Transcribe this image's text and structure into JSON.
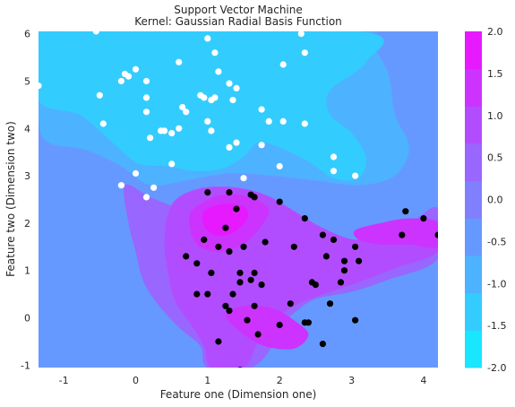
{
  "chart_data": {
    "type": "scatter",
    "title": "Support Vector Machine",
    "subtitle": "Kernel: Gaussian Radial Basis Function",
    "xlabel": "Feature one (Dimension one)",
    "ylabel": "Feature two (Dimension two)",
    "xlim": [
      -1.35,
      4.2
    ],
    "ylim": [
      -1.05,
      6.05
    ],
    "x_ticks": [
      "-1",
      "0",
      "1",
      "2",
      "3",
      "4"
    ],
    "x_tick_values": [
      -1,
      0,
      1,
      2,
      3,
      4
    ],
    "y_ticks": [
      "-1",
      "0",
      "1",
      "2",
      "3",
      "4",
      "5",
      "6"
    ],
    "y_tick_values": [
      -1,
      0,
      1,
      2,
      3,
      4,
      5,
      6
    ],
    "grid": false,
    "colorbar": {
      "colormap": "cool",
      "ticks": [
        "-2.0",
        "-1.5",
        "-1.0",
        "-0.5",
        "0.0",
        "0.5",
        "1.0",
        "1.5",
        "2.0"
      ],
      "tick_values": [
        -2.0,
        -1.5,
        -1.0,
        -0.5,
        0.0,
        0.5,
        1.0,
        1.5,
        2.0
      ],
      "colors": [
        "#19e6ff",
        "#33ccff",
        "#4db2ff",
        "#6699ff",
        "#8080ff",
        "#9966ff",
        "#b24dff",
        "#cc33ff",
        "#e619ff"
      ]
    },
    "contour_regions": [
      {
        "level": -1.25,
        "color": "#4db2ff",
        "outline": [
          [
            -1.35,
            4.2
          ],
          [
            -1.2,
            3.7
          ],
          [
            -0.7,
            3.55
          ],
          [
            -0.2,
            3.2
          ],
          [
            0.2,
            2.8
          ],
          [
            0.7,
            2.9
          ],
          [
            1.3,
            3.05
          ],
          [
            1.9,
            3.0
          ],
          [
            2.5,
            2.9
          ],
          [
            3.1,
            2.8
          ],
          [
            3.6,
            3.0
          ],
          [
            3.8,
            3.6
          ],
          [
            3.6,
            4.3
          ],
          [
            3.5,
            5.2
          ],
          [
            3.2,
            5.9
          ],
          [
            3.0,
            6.05
          ],
          [
            -1.35,
            6.05
          ]
        ]
      },
      {
        "level": -1.75,
        "color": "#33ccff",
        "outline": [
          [
            -1.35,
            4.6
          ],
          [
            -0.8,
            4.3
          ],
          [
            -0.5,
            3.95
          ],
          [
            -0.25,
            3.6
          ],
          [
            0.05,
            3.25
          ],
          [
            0.45,
            3.2
          ],
          [
            0.8,
            3.1
          ],
          [
            1.2,
            3.15
          ],
          [
            1.5,
            3.4
          ],
          [
            1.7,
            3.7
          ],
          [
            2.0,
            3.6
          ],
          [
            2.4,
            3.3
          ],
          [
            2.75,
            2.95
          ],
          [
            3.1,
            2.95
          ],
          [
            3.2,
            3.4
          ],
          [
            3.0,
            3.9
          ],
          [
            2.7,
            4.3
          ],
          [
            2.7,
            4.8
          ],
          [
            3.2,
            5.4
          ],
          [
            3.1,
            6.05
          ],
          [
            -0.9,
            6.05
          ],
          [
            -1.35,
            5.9
          ]
        ]
      },
      {
        "level": 0.25,
        "color": "#9966ff",
        "outline": [
          [
            -0.15,
            2.8
          ],
          [
            0.2,
            2.55
          ],
          [
            0.6,
            2.3
          ],
          [
            0.9,
            2.05
          ],
          [
            1.1,
            1.7
          ],
          [
            1.3,
            1.3
          ],
          [
            1.7,
            1.0
          ],
          [
            2.0,
            0.9
          ],
          [
            2.4,
            1.0
          ],
          [
            2.8,
            1.3
          ],
          [
            3.4,
            1.6
          ],
          [
            3.9,
            2.1
          ],
          [
            4.2,
            2.3
          ],
          [
            4.2,
            1.25
          ],
          [
            3.5,
            0.8
          ],
          [
            3.0,
            0.55
          ],
          [
            2.5,
            0.4
          ],
          [
            2.2,
            0.1
          ],
          [
            2.0,
            -0.2
          ],
          [
            1.9,
            -0.6
          ],
          [
            1.6,
            -1.05
          ],
          [
            1.0,
            -1.05
          ],
          [
            0.9,
            -0.6
          ],
          [
            0.6,
            -0.2
          ],
          [
            0.3,
            0.3
          ],
          [
            0.1,
            0.8
          ],
          [
            0.0,
            1.4
          ],
          [
            -0.1,
            2.0
          ]
        ]
      },
      {
        "level": 0.75,
        "color": "#b24dff",
        "outline": [
          [
            0.6,
            2.55
          ],
          [
            0.95,
            2.75
          ],
          [
            1.4,
            2.75
          ],
          [
            1.8,
            2.6
          ],
          [
            2.1,
            2.35
          ],
          [
            2.6,
            1.9
          ],
          [
            3.1,
            1.65
          ],
          [
            3.6,
            1.95
          ],
          [
            4.2,
            2.05
          ],
          [
            4.2,
            1.4
          ],
          [
            3.6,
            1.05
          ],
          [
            3.1,
            0.75
          ],
          [
            2.7,
            0.55
          ],
          [
            2.2,
            0.25
          ],
          [
            1.9,
            -0.1
          ],
          [
            1.7,
            -0.5
          ],
          [
            1.5,
            -1.05
          ],
          [
            1.05,
            -1.05
          ],
          [
            0.95,
            -0.6
          ],
          [
            0.75,
            -0.1
          ],
          [
            0.55,
            0.35
          ],
          [
            0.45,
            0.95
          ],
          [
            0.4,
            1.6
          ],
          [
            0.45,
            2.2
          ]
        ]
      },
      {
        "level": 1.25,
        "color": "#cc33ff",
        "outline": [
          [
            0.8,
            2.3
          ],
          [
            1.2,
            2.6
          ],
          [
            1.6,
            2.55
          ],
          [
            1.85,
            2.3
          ],
          [
            1.75,
            1.95
          ],
          [
            1.5,
            1.55
          ],
          [
            1.15,
            1.4
          ],
          [
            0.85,
            1.55
          ],
          [
            0.75,
            1.95
          ]
        ]
      },
      {
        "level": 1.75,
        "color": "#e619ff",
        "outline": [
          [
            0.95,
            2.25
          ],
          [
            1.2,
            2.4
          ],
          [
            1.5,
            2.35
          ],
          [
            1.55,
            2.1
          ],
          [
            1.35,
            1.8
          ],
          [
            1.1,
            1.75
          ],
          [
            0.95,
            1.95
          ]
        ]
      },
      {
        "level": 1.25,
        "color": "#cc33ff",
        "outline": [
          [
            3.05,
            1.85
          ],
          [
            3.4,
            2.0
          ],
          [
            3.8,
            2.1
          ],
          [
            4.2,
            2.0
          ],
          [
            4.2,
            1.5
          ],
          [
            3.8,
            1.55
          ],
          [
            3.4,
            1.55
          ],
          [
            3.1,
            1.65
          ]
        ]
      },
      {
        "level": 1.25,
        "color": "#cc33ff",
        "outline": [
          [
            1.25,
            0.05
          ],
          [
            1.5,
            0.25
          ],
          [
            1.9,
            0.2
          ],
          [
            2.2,
            -0.05
          ],
          [
            2.4,
            -0.35
          ],
          [
            2.2,
            -0.65
          ],
          [
            1.8,
            -0.6
          ],
          [
            1.5,
            -0.35
          ]
        ]
      }
    ],
    "series": [
      {
        "class": 0,
        "color": "#ffffff",
        "points": [
          [
            -0.55,
            6.05
          ],
          [
            1.0,
            5.9
          ],
          [
            2.3,
            6.0
          ],
          [
            1.1,
            5.6
          ],
          [
            2.35,
            5.6
          ],
          [
            0.6,
            5.4
          ],
          [
            2.05,
            5.35
          ],
          [
            -0.15,
            5.15
          ],
          [
            0.0,
            5.25
          ],
          [
            -0.2,
            5.0
          ],
          [
            -0.1,
            5.1
          ],
          [
            1.15,
            5.2
          ],
          [
            0.15,
            5.0
          ],
          [
            1.3,
            4.95
          ],
          [
            -1.35,
            4.9
          ],
          [
            -0.5,
            4.7
          ],
          [
            0.15,
            4.65
          ],
          [
            0.9,
            4.7
          ],
          [
            0.95,
            4.65
          ],
          [
            1.05,
            4.6
          ],
          [
            1.1,
            4.65
          ],
          [
            1.35,
            4.6
          ],
          [
            1.4,
            4.85
          ],
          [
            0.65,
            4.45
          ],
          [
            0.7,
            4.35
          ],
          [
            0.15,
            4.35
          ],
          [
            1.75,
            4.4
          ],
          [
            1.85,
            4.15
          ],
          [
            2.05,
            4.15
          ],
          [
            2.35,
            4.1
          ],
          [
            1.0,
            4.15
          ],
          [
            -0.45,
            4.1
          ],
          [
            0.35,
            3.95
          ],
          [
            0.4,
            3.95
          ],
          [
            0.5,
            3.9
          ],
          [
            0.6,
            4.0
          ],
          [
            1.05,
            3.95
          ],
          [
            0.2,
            3.8
          ],
          [
            1.3,
            3.6
          ],
          [
            1.4,
            3.7
          ],
          [
            1.75,
            3.65
          ],
          [
            2.75,
            3.4
          ],
          [
            0.5,
            3.25
          ],
          [
            2.0,
            3.2
          ],
          [
            2.75,
            3.1
          ],
          [
            0.0,
            3.05
          ],
          [
            3.05,
            3.0
          ],
          [
            1.5,
            2.95
          ],
          [
            -0.2,
            2.8
          ],
          [
            0.25,
            2.75
          ],
          [
            0.15,
            2.55
          ]
        ]
      },
      {
        "class": 1,
        "color": "#000000",
        "points": [
          [
            1.0,
            2.65
          ],
          [
            1.3,
            2.65
          ],
          [
            1.6,
            2.6
          ],
          [
            1.65,
            2.55
          ],
          [
            2.0,
            2.45
          ],
          [
            1.4,
            2.3
          ],
          [
            3.75,
            2.25
          ],
          [
            4.0,
            2.1
          ],
          [
            2.35,
            2.1
          ],
          [
            1.25,
            1.9
          ],
          [
            4.2,
            1.75
          ],
          [
            3.7,
            1.75
          ],
          [
            2.6,
            1.75
          ],
          [
            2.75,
            1.65
          ],
          [
            0.95,
            1.65
          ],
          [
            1.8,
            1.6
          ],
          [
            1.15,
            1.5
          ],
          [
            1.5,
            1.5
          ],
          [
            2.2,
            1.5
          ],
          [
            3.05,
            1.5
          ],
          [
            1.3,
            1.4
          ],
          [
            0.7,
            1.3
          ],
          [
            2.65,
            1.3
          ],
          [
            2.9,
            1.2
          ],
          [
            3.1,
            1.2
          ],
          [
            0.85,
            1.15
          ],
          [
            2.9,
            1.0
          ],
          [
            1.05,
            0.95
          ],
          [
            1.45,
            0.95
          ],
          [
            1.65,
            0.95
          ],
          [
            1.6,
            0.8
          ],
          [
            1.45,
            0.75
          ],
          [
            1.75,
            0.7
          ],
          [
            2.45,
            0.75
          ],
          [
            2.5,
            0.7
          ],
          [
            2.85,
            0.75
          ],
          [
            0.85,
            0.5
          ],
          [
            1.0,
            0.5
          ],
          [
            1.35,
            0.5
          ],
          [
            1.25,
            0.25
          ],
          [
            1.3,
            0.15
          ],
          [
            1.65,
            0.25
          ],
          [
            2.15,
            0.3
          ],
          [
            2.7,
            0.3
          ],
          [
            1.55,
            -0.05
          ],
          [
            2.0,
            -0.15
          ],
          [
            2.35,
            -0.1
          ],
          [
            2.4,
            -0.1
          ],
          [
            3.05,
            -0.05
          ],
          [
            1.7,
            -0.35
          ],
          [
            1.15,
            -0.5
          ],
          [
            2.6,
            -0.55
          ],
          [
            1.45,
            -1.1
          ]
        ]
      }
    ]
  }
}
